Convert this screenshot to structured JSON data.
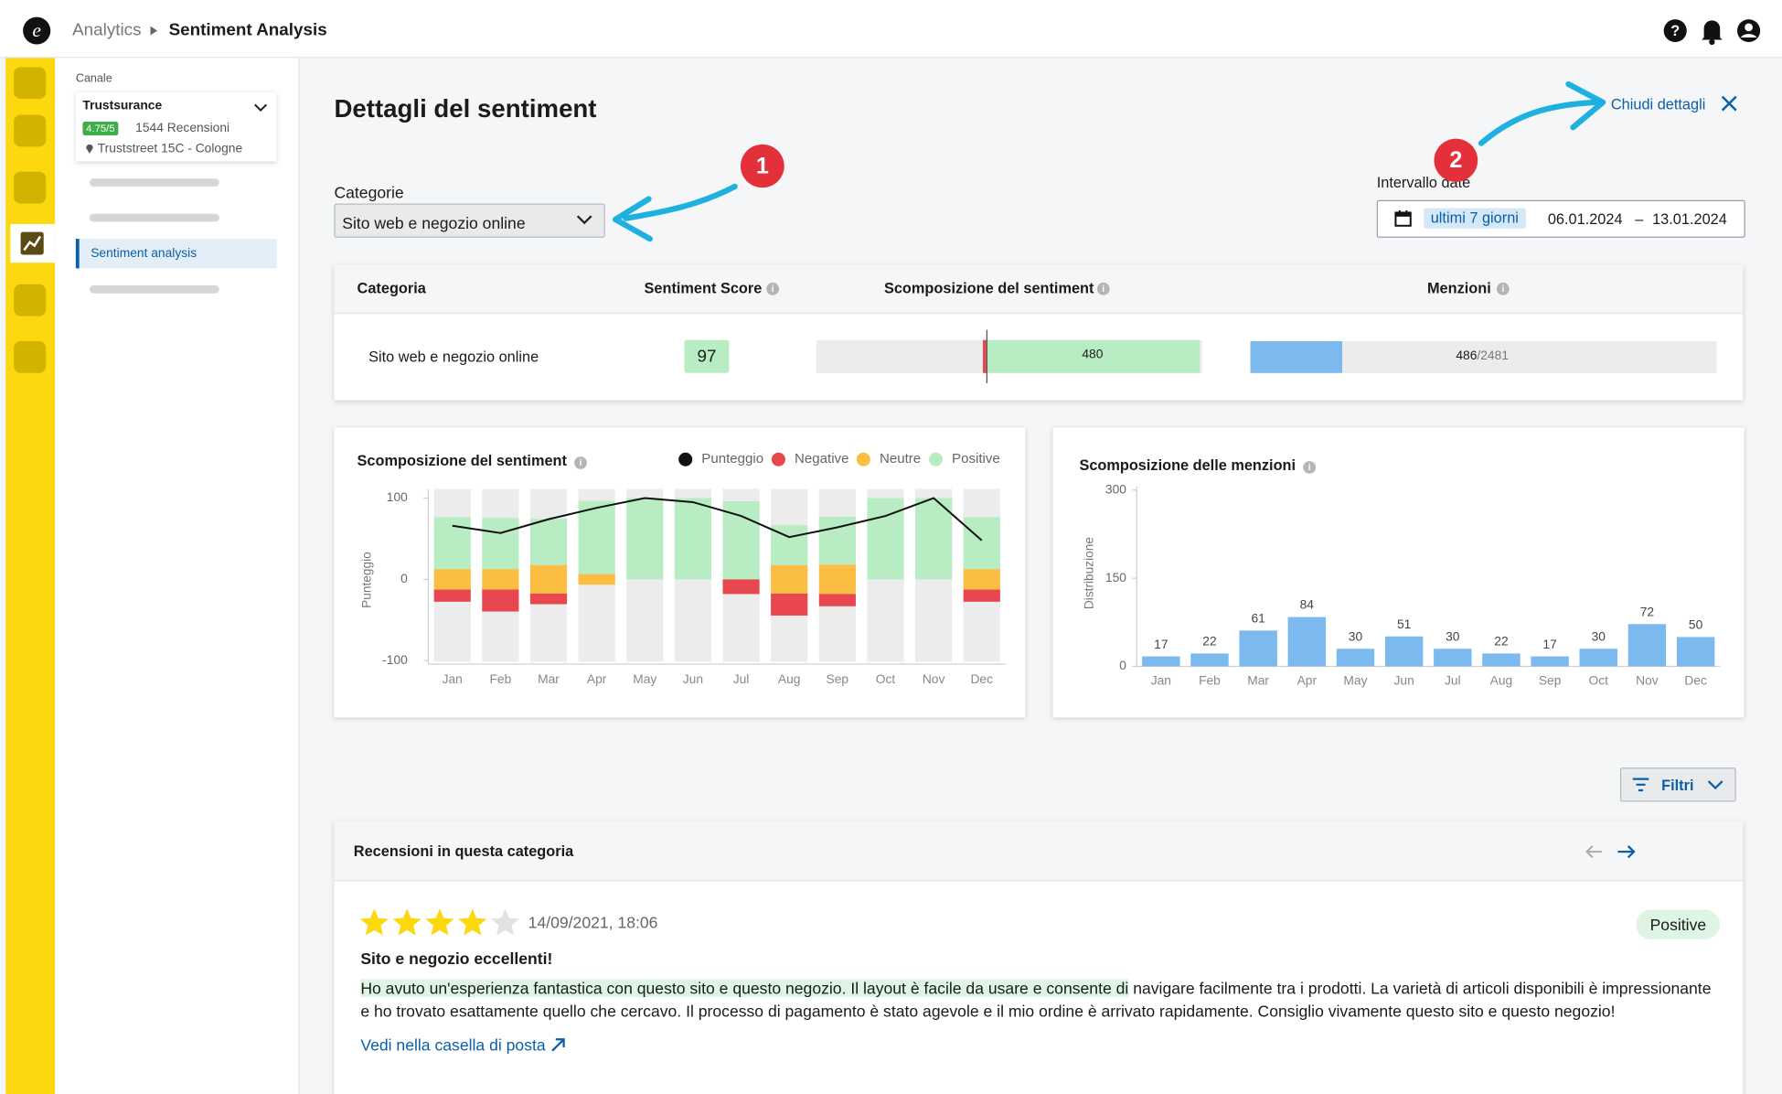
{
  "header": {
    "breadcrumb": [
      "Analytics",
      "Sentiment Analysis"
    ]
  },
  "sidebar": {
    "channel_label": "Canale",
    "channel": {
      "name": "Trustsurance",
      "rating": "4.75/5",
      "reviews": "1544 Recensioni",
      "address": "Truststreet 15C - Cologne"
    },
    "nav_active": "Sentiment analysis"
  },
  "page": {
    "title": "Dettagli del sentiment",
    "close": "Chiudi dettagli",
    "callouts": [
      "1",
      "2"
    ],
    "category_label": "Categorie",
    "category_value": "Sito web e negozio online",
    "date_label": "Intervallo date",
    "date_preset": "ultimi 7 giorni",
    "date_from": "06.01.2024",
    "date_separator": "–",
    "date_to": "13.01.2024",
    "filters": "Filtri"
  },
  "table": {
    "headers": [
      "Categoria",
      "Sentiment Score",
      "Scomposizione del sentiment",
      "Menzioni"
    ],
    "row": {
      "category": "Sito web e negozio online",
      "score": 97,
      "positive": 480,
      "mentions": 486,
      "mentions_total": {
        "value": 2481,
        "label": "/2481"
      }
    }
  },
  "chart_data": [
    {
      "type": "bar",
      "stacked": true,
      "title": "Scomposizione del sentiment",
      "y_label": "Punteggio",
      "categories": [
        "Jan",
        "Feb",
        "Mar",
        "Apr",
        "May",
        "Jun",
        "Jul",
        "Aug",
        "Sep",
        "Oct",
        "Nov",
        "Dec"
      ],
      "series": [
        {
          "name": "Punteggio",
          "color": "#111111",
          "type": "line",
          "values": [
            66,
            57,
            74,
            88,
            100,
            95,
            78,
            52,
            64,
            78,
            100,
            48
          ]
        },
        {
          "name": "Negative",
          "color": "#e8474f",
          "values": [
            15,
            27,
            13,
            0,
            0,
            0,
            18,
            27,
            15,
            0,
            0,
            15
          ]
        },
        {
          "name": "Neutre",
          "color": "#fbbd42",
          "values": [
            25,
            25,
            35,
            13,
            0,
            0,
            0,
            35,
            36,
            0,
            0,
            25
          ]
        },
        {
          "name": "Positive",
          "color": "#b8edc4",
          "values": [
            64,
            63,
            57,
            90,
            100,
            100,
            96,
            49,
            59,
            100,
            100,
            64
          ]
        }
      ],
      "ylim": [
        -100,
        100
      ],
      "yticks": [
        -100,
        0,
        100
      ]
    },
    {
      "type": "bar",
      "title": "Scomposizione delle menzioni",
      "y_label": "Distribuzione",
      "categories": [
        "Jan",
        "Feb",
        "Mar",
        "Apr",
        "May",
        "Jun",
        "Jul",
        "Aug",
        "Sep",
        "Oct",
        "Nov",
        "Dec"
      ],
      "values": [
        17,
        22,
        61,
        84,
        30,
        51,
        30,
        22,
        17,
        30,
        72,
        50
      ],
      "color": "#7cb9ef",
      "ylim": [
        0,
        300
      ],
      "yticks": [
        0,
        150,
        300
      ]
    }
  ],
  "reviews": {
    "title": "Recensioni in questa categoria",
    "items": [
      {
        "rating": 4,
        "rating_max": 5,
        "date": "14/09/2021, 18:06",
        "sentiment": "Positive",
        "heading": "Sito e negozio eccellenti!",
        "text_highlight": "Ho avuto un'esperienza fantastica con questo sito e questo negozio. Il layout è facile da usare e consente di",
        "text_rest": " navigare facilmente tra i prodotti. La varietà di articoli disponibili è impressionante e ho trovato esattamente quello che cercavo. Il processo di pagamento è stato agevole e il mio ordine è arrivato rapidamente. Consiglio vivamente questo sito e questo negozio!",
        "link": "Vedi nella casella di posta"
      }
    ]
  }
}
